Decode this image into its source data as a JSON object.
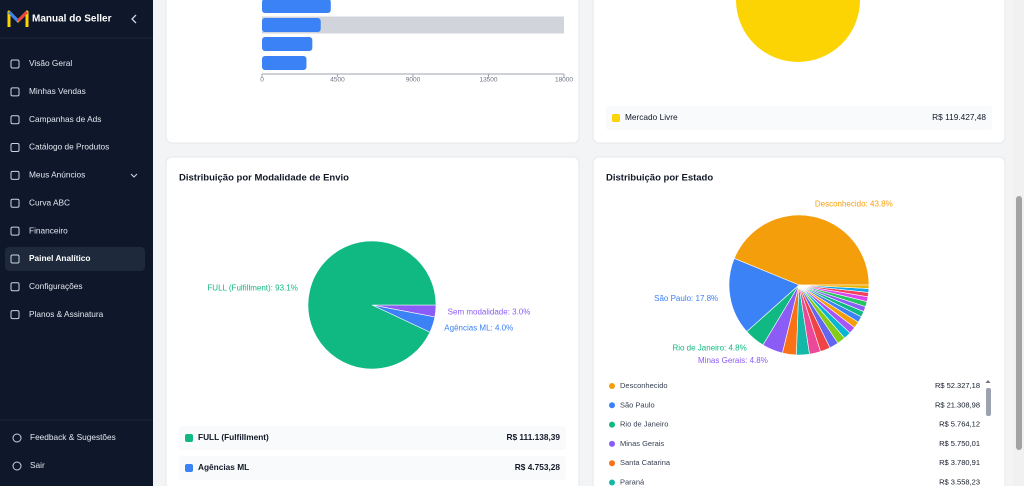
{
  "sidebar": {
    "brand": "Manual do Seller",
    "menu": [
      "Visão Geral",
      "Minhas Vendas",
      "Campanhas de Ads",
      "Catálogo de Produtos",
      "Meus Anúncios",
      "Curva ABC",
      "Financeiro",
      "Painel Analítico",
      "Configurações",
      "Planos & Assinatura"
    ],
    "active": 7,
    "footer": [
      "Feedback & Sugestões",
      "Sair"
    ]
  },
  "chart_data": [
    {
      "type": "bar",
      "orientation": "horizontal",
      "categories": [
        null,
        null,
        null,
        null
      ],
      "values": [
        4100,
        3500,
        3000,
        2650
      ],
      "color": "#3b82f6",
      "highlight": 1,
      "xlim": [
        0,
        18000
      ],
      "xticks": [
        0,
        4500,
        9000,
        13500,
        18000
      ]
    },
    {
      "type": "pie",
      "slices": [
        {
          "name": "Mercado Livre",
          "value": 119427.48,
          "value_label": "R$ 119.427,48",
          "color": "#fcd404"
        }
      ]
    },
    {
      "type": "pie",
      "title": "Distribuição por Modalidade de Envio",
      "start_angle": 0,
      "clockwise": true,
      "slices": [
        {
          "label": "Sem modalidade: 3.0%",
          "value": 3.0,
          "color": "#8b5cf6"
        },
        {
          "label": "Agências ML: 4.0%",
          "value": 4.0,
          "color": "#3b82f6"
        },
        {
          "label": "FULL (Fulfillment): 93.1%",
          "value": 93.1,
          "color": "#10b981"
        }
      ],
      "legend": [
        {
          "name": "FULL (Fulfillment)",
          "amount": "R$ 111.138,39",
          "color": "#10b981"
        },
        {
          "name": "Agências ML",
          "amount": "R$ 4.753,28",
          "color": "#3b82f6"
        }
      ]
    },
    {
      "type": "pie",
      "title": "Distribuição por Estado",
      "start_angle": 0,
      "clockwise": false,
      "slices": [
        {
          "label": "Desconhecido: 43.8%",
          "value": 43.8,
          "color": "#f59e0b"
        },
        {
          "label": "São Paulo: 17.8%",
          "value": 17.8,
          "color": "#3b82f6"
        },
        {
          "label": "Rio de Janeiro: 4.8%",
          "value": 4.8,
          "color": "#10b981"
        },
        {
          "label": "Minas Gerais: 4.8%",
          "value": 4.8,
          "color": "#8b5cf6"
        },
        {
          "label": null,
          "value": 3.2,
          "color": "#f97316"
        },
        {
          "label": null,
          "value": 3.0,
          "color": "#14b8a6"
        },
        {
          "label": null,
          "value": 2.6,
          "color": "#ec4899"
        },
        {
          "label": null,
          "value": 2.3,
          "color": "#ef4444"
        },
        {
          "label": null,
          "value": 2.1,
          "color": "#6366f1"
        },
        {
          "label": null,
          "value": 1.9,
          "color": "#84cc16"
        },
        {
          "label": null,
          "value": 1.7,
          "color": "#06b6d4"
        },
        {
          "label": null,
          "value": 1.6,
          "color": "#a855f7"
        },
        {
          "label": null,
          "value": 1.5,
          "color": "#f59e0b"
        },
        {
          "label": null,
          "value": 1.4,
          "color": "#3b82f6"
        },
        {
          "label": null,
          "value": 1.3,
          "color": "#10b981"
        },
        {
          "label": null,
          "value": 1.2,
          "color": "#8b5cf6"
        },
        {
          "label": null,
          "value": 1.2,
          "color": "#22c55e"
        },
        {
          "label": null,
          "value": 1.1,
          "color": "#d946ef"
        },
        {
          "label": null,
          "value": 1.0,
          "color": "#f43f5e"
        },
        {
          "label": null,
          "value": 0.9,
          "color": "#0ea5e9"
        },
        {
          "label": null,
          "value": 0.8,
          "color": "#eab308"
        }
      ],
      "list": [
        {
          "name": "Desconhecido",
          "amount": "R$ 52.327,18",
          "color": "#f59e0b"
        },
        {
          "name": "São Paulo",
          "amount": "R$ 21.308,98",
          "color": "#3b82f6"
        },
        {
          "name": "Rio de Janeiro",
          "amount": "R$ 5.764,12",
          "color": "#10b981"
        },
        {
          "name": "Minas Gerais",
          "amount": "R$ 5.750,01",
          "color": "#8b5cf6"
        },
        {
          "name": "Santa Catarina",
          "amount": "R$ 3.780,91",
          "color": "#f97316"
        },
        {
          "name": "Paraná",
          "amount": "R$ 3.558,23",
          "color": "#14b8a6"
        }
      ]
    }
  ]
}
